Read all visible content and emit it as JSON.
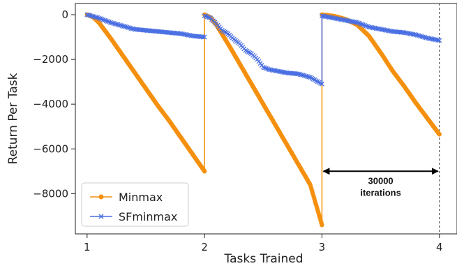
{
  "chart_data": {
    "type": "line",
    "xlabel": "Tasks Trained",
    "ylabel": "Return Per Task",
    "xlim": [
      0.9,
      4.15
    ],
    "ylim": [
      -9800,
      500
    ],
    "xticks": [
      1,
      2,
      3,
      4
    ],
    "xtick_labels": [
      "1",
      "2",
      "3",
      "4"
    ],
    "yticks": [
      0,
      -2000,
      -4000,
      -6000,
      -8000
    ],
    "ytick_labels": [
      "0",
      "−2000",
      "−4000",
      "−6000",
      "−8000"
    ],
    "grid": false,
    "legend_position": "bottom-left",
    "series": [
      {
        "name": "Minmax",
        "color": "#f5900e",
        "marker": "circle",
        "segments": [
          [
            [
              1.0,
              0
            ],
            [
              1.05,
              -100
            ],
            [
              1.1,
              -350
            ],
            [
              1.2,
              -1050
            ],
            [
              1.3,
              -1800
            ],
            [
              1.4,
              -2550
            ],
            [
              1.5,
              -3300
            ],
            [
              1.6,
              -4050
            ],
            [
              1.7,
              -4750
            ],
            [
              1.8,
              -5500
            ],
            [
              1.9,
              -6250
            ],
            [
              2.0,
              -7000
            ]
          ],
          [
            [
              2.0,
              0
            ],
            [
              2.05,
              -120
            ],
            [
              2.1,
              -450
            ],
            [
              2.2,
              -1300
            ],
            [
              2.3,
              -2200
            ],
            [
              2.4,
              -3100
            ],
            [
              2.5,
              -4000
            ],
            [
              2.6,
              -4900
            ],
            [
              2.7,
              -5800
            ],
            [
              2.8,
              -6700
            ],
            [
              2.9,
              -7600
            ],
            [
              3.0,
              -9400
            ]
          ],
          [
            [
              3.0,
              0
            ],
            [
              3.1,
              -60
            ],
            [
              3.2,
              -200
            ],
            [
              3.3,
              -450
            ],
            [
              3.4,
              -950
            ],
            [
              3.5,
              -1700
            ],
            [
              3.6,
              -2500
            ],
            [
              3.7,
              -3200
            ],
            [
              3.8,
              -3950
            ],
            [
              3.9,
              -4650
            ],
            [
              4.0,
              -5350
            ]
          ]
        ],
        "connectors": [
          [
            [
              2.0,
              -7000
            ],
            [
              2.0,
              0
            ]
          ],
          [
            [
              3.0,
              -9400
            ],
            [
              3.0,
              0
            ]
          ]
        ]
      },
      {
        "name": "SFminmax",
        "color": "#4a6fe3",
        "marker": "x",
        "segments": [
          [
            [
              1.0,
              0
            ],
            [
              1.1,
              -150
            ],
            [
              1.2,
              -350
            ],
            [
              1.3,
              -500
            ],
            [
              1.4,
              -650
            ],
            [
              1.5,
              -700
            ],
            [
              1.6,
              -750
            ],
            [
              1.7,
              -800
            ],
            [
              1.8,
              -850
            ],
            [
              1.9,
              -950
            ],
            [
              2.0,
              -1000
            ]
          ],
          [
            [
              2.0,
              -50
            ],
            [
              2.05,
              -150
            ],
            [
              2.1,
              -400
            ],
            [
              2.15,
              -700
            ],
            [
              2.2,
              -850
            ],
            [
              2.25,
              -1100
            ],
            [
              2.3,
              -1300
            ],
            [
              2.35,
              -1600
            ],
            [
              2.4,
              -1750
            ],
            [
              2.45,
              -2000
            ],
            [
              2.5,
              -2350
            ],
            [
              2.55,
              -2450
            ],
            [
              2.6,
              -2500
            ],
            [
              2.7,
              -2600
            ],
            [
              2.8,
              -2650
            ],
            [
              2.9,
              -2800
            ],
            [
              3.0,
              -3100
            ]
          ],
          [
            [
              3.0,
              -50
            ],
            [
              3.1,
              -150
            ],
            [
              3.2,
              -250
            ],
            [
              3.3,
              -350
            ],
            [
              3.4,
              -550
            ],
            [
              3.5,
              -650
            ],
            [
              3.6,
              -750
            ],
            [
              3.7,
              -800
            ],
            [
              3.8,
              -900
            ],
            [
              3.9,
              -1050
            ],
            [
              4.0,
              -1150
            ]
          ]
        ],
        "connectors": [
          [
            [
              3.0,
              -3100
            ],
            [
              3.0,
              -50
            ]
          ]
        ]
      }
    ],
    "annotation": {
      "lines": [
        "30000",
        "iterations"
      ],
      "x_start": 3.0,
      "x_end": 4.0,
      "y": -7000
    },
    "vline_x": 4.0
  }
}
